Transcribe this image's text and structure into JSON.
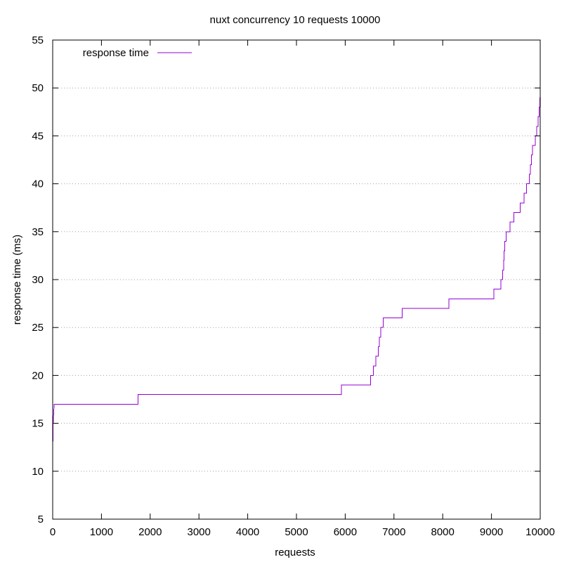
{
  "chart_data": {
    "type": "line",
    "title": "nuxt concurrency 10 requests 10000",
    "xlabel": "requests",
    "ylabel": "response time (ms)",
    "xlim": [
      0,
      10000
    ],
    "ylim": [
      5,
      55
    ],
    "x_ticks": [
      0,
      1000,
      2000,
      3000,
      4000,
      5000,
      6000,
      7000,
      8000,
      9000,
      10000
    ],
    "y_ticks": [
      5,
      10,
      15,
      20,
      25,
      30,
      35,
      40,
      45,
      50,
      55
    ],
    "grid": "horizontal dotted",
    "legend_position": "top-left",
    "series": [
      {
        "name": "response time",
        "color": "#9400d3",
        "step": true,
        "points": [
          [
            0,
            12
          ],
          [
            10,
            15
          ],
          [
            20,
            16
          ],
          [
            30,
            17
          ],
          [
            1750,
            17
          ],
          [
            1750,
            18
          ],
          [
            5920,
            18
          ],
          [
            5920,
            19
          ],
          [
            6520,
            19
          ],
          [
            6520,
            20
          ],
          [
            6580,
            20
          ],
          [
            6580,
            21
          ],
          [
            6630,
            21
          ],
          [
            6630,
            22
          ],
          [
            6680,
            22
          ],
          [
            6680,
            23
          ],
          [
            6700,
            23
          ],
          [
            6700,
            24
          ],
          [
            6730,
            24
          ],
          [
            6730,
            25
          ],
          [
            6780,
            25
          ],
          [
            6780,
            26
          ],
          [
            7170,
            26
          ],
          [
            7170,
            27
          ],
          [
            8130,
            27
          ],
          [
            8130,
            28
          ],
          [
            9050,
            28
          ],
          [
            9050,
            29
          ],
          [
            9190,
            29
          ],
          [
            9190,
            30
          ],
          [
            9230,
            30
          ],
          [
            9230,
            31
          ],
          [
            9250,
            31
          ],
          [
            9250,
            32
          ],
          [
            9260,
            32
          ],
          [
            9260,
            33
          ],
          [
            9275,
            33
          ],
          [
            9275,
            34
          ],
          [
            9300,
            34
          ],
          [
            9300,
            35
          ],
          [
            9380,
            35
          ],
          [
            9380,
            36
          ],
          [
            9460,
            36
          ],
          [
            9460,
            37
          ],
          [
            9590,
            37
          ],
          [
            9590,
            38
          ],
          [
            9670,
            38
          ],
          [
            9670,
            39
          ],
          [
            9720,
            39
          ],
          [
            9720,
            40
          ],
          [
            9780,
            40
          ],
          [
            9780,
            41
          ],
          [
            9800,
            41
          ],
          [
            9800,
            42
          ],
          [
            9820,
            42
          ],
          [
            9820,
            43
          ],
          [
            9840,
            43
          ],
          [
            9840,
            44
          ],
          [
            9900,
            44
          ],
          [
            9900,
            45
          ],
          [
            9930,
            45
          ],
          [
            9930,
            46
          ],
          [
            9960,
            46
          ],
          [
            9960,
            47
          ],
          [
            9980,
            47
          ],
          [
            9980,
            48
          ],
          [
            9990,
            48
          ],
          [
            9990,
            49
          ],
          [
            10000,
            49
          ]
        ]
      }
    ]
  }
}
